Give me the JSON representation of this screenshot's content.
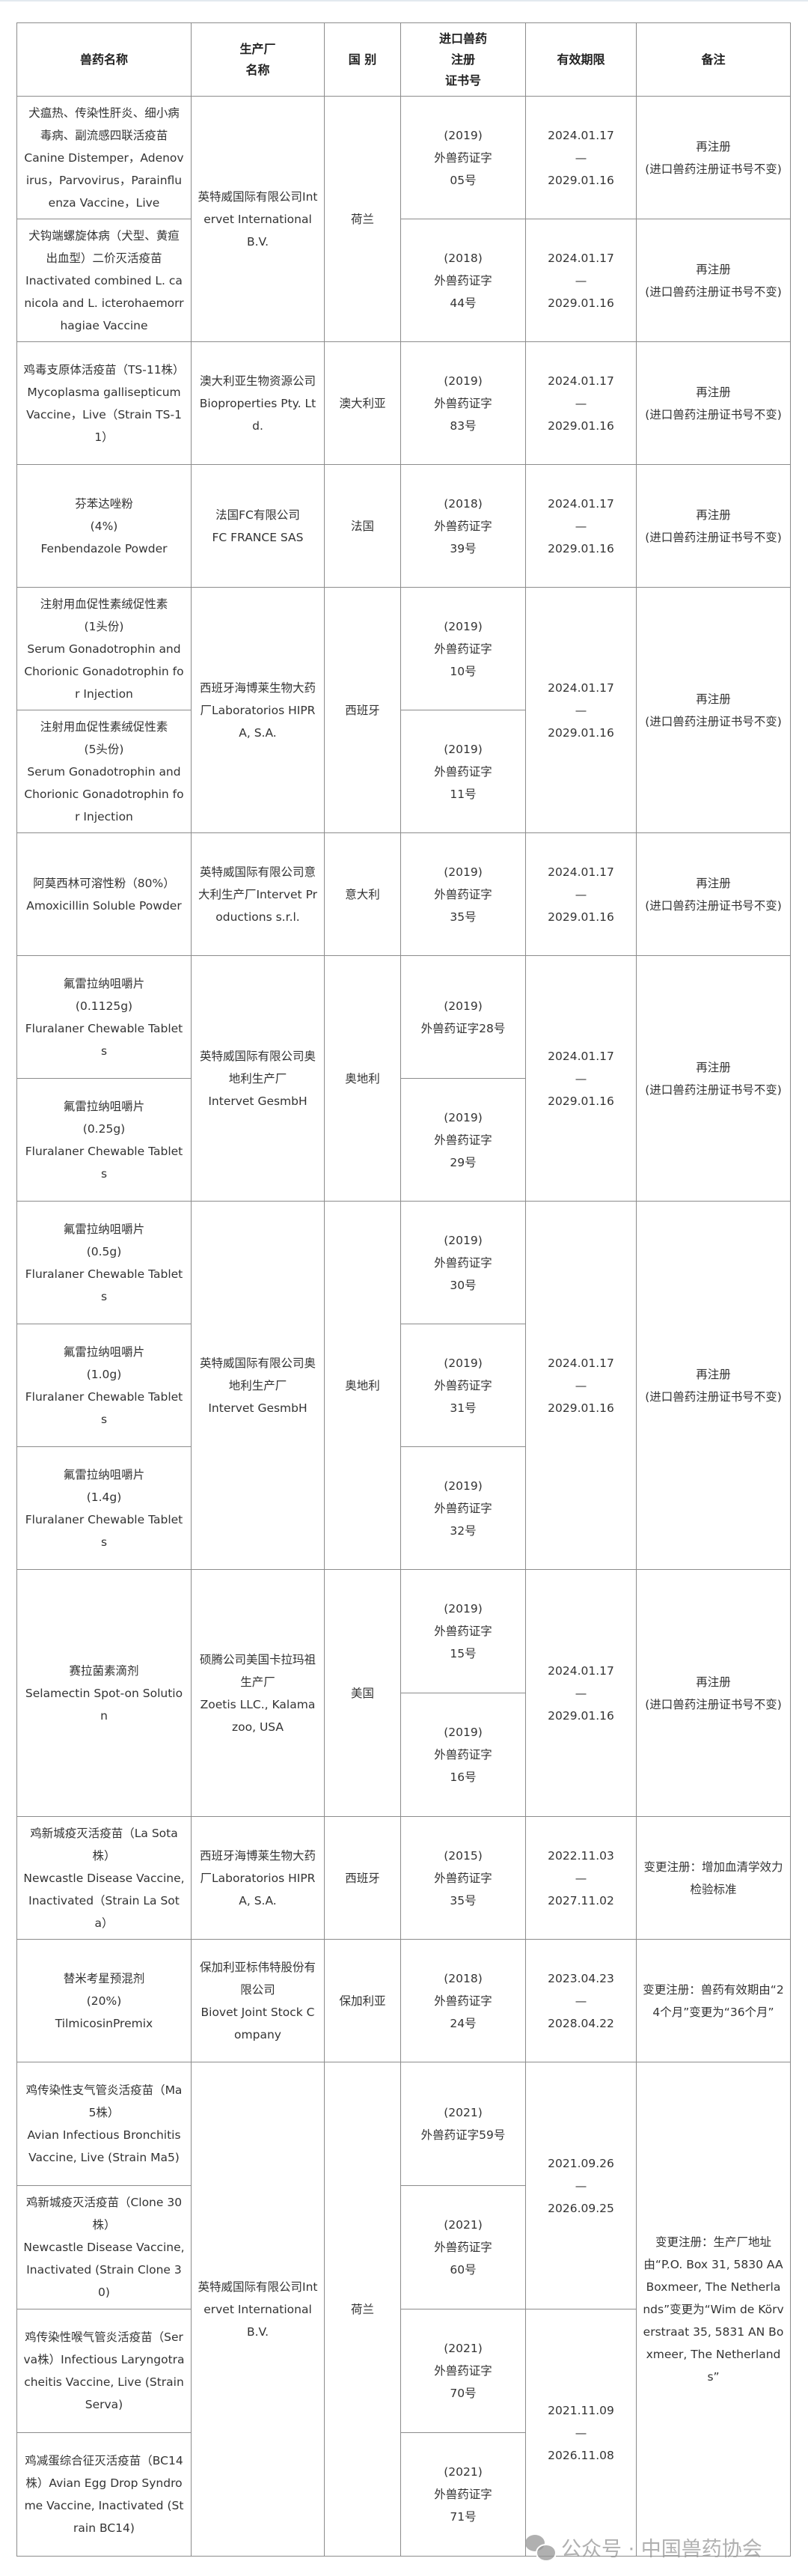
{
  "header": {
    "name": "兽药名称",
    "manufacturer": "生产厂\n名称",
    "country": "国 别",
    "cert": "进口兽药\n注册\n证书号",
    "validity": "有效期限",
    "remark": "备注"
  },
  "products": [
    "犬瘟热、传染性肝炎、细小病毒病、副流感四联活疫苗\nCanine Distemper，Adenovirus，Parvovirus，Parainfluenza Vaccine，Live",
    "犬钩端螺旋体病（犬型、黄疸出血型）二价灭活疫苗\nInactivated combined L. canicola and L. icterohaemorrhagiae Vaccine",
    "鸡毒支原体活疫苗（TS-11株）\nMycoplasma gallisepticum Vaccine，Live（Strain TS-11）",
    "芬苯达唑粉\n(4%)\nFenbendazole Powder",
    "注射用血促性素绒促性素\n(1头份)\nSerum Gonadotrophin and Chorionic Gonadotrophin for Injection",
    "注射用血促性素绒促性素\n(5头份)\nSerum Gonadotrophin and Chorionic Gonadotrophin for Injection",
    "阿莫西林可溶性粉（80%）\nAmoxicillin Soluble Powder",
    "氟雷拉纳咀嚼片\n(0.1125g)\nFluralaner Chewable Tablets",
    "氟雷拉纳咀嚼片\n(0.25g)\nFluralaner Chewable Tablets",
    "氟雷拉纳咀嚼片\n(0.5g)\nFluralaner Chewable Tablets",
    "氟雷拉纳咀嚼片\n(1.0g)\nFluralaner Chewable Tablets",
    "氟雷拉纳咀嚼片\n(1.4g)\nFluralaner Chewable Tablets",
    "赛拉菌素滴剂\nSelamectin Spot-on Solution",
    "鸡新城疫灭活疫苗（La Sota株）\nNewcastle Disease Vaccine, Inactivated（Strain La Sota）",
    "替米考星预混剂\n(20%)\nTilmicosinPremix",
    "鸡传染性支气管炎活疫苗（Ma5株）\nAvian Infectious Bronchitis Vaccine, Live (Strain Ma5)",
    "鸡新城疫灭活疫苗（Clone 30株）\nNewcastle Disease Vaccine, Inactivated (Strain Clone 30)",
    "鸡传染性喉气管炎活疫苗（Serva株）Infectious Laryngotracheitis Vaccine, Live (Strain Serva)",
    "鸡减蛋综合征灭活疫苗（BC14株）Avian Egg Drop Syndrome Vaccine, Inactivated (Strain BC14)"
  ],
  "manufacturers": [
    "英特威国际有限公司Intervet International B.V.",
    "澳大利亚生物资源公司Bioproperties Pty. Ltd.",
    "法国FC有限公司\nFC FRANCE SAS",
    "西班牙海博莱生物大药厂Laboratorios HIPRA, S.A.",
    "英特威国际有限公司意大利生产厂Intervet Productions s.r.l.",
    "英特威国际有限公司奥地利生产厂\nIntervet GesmbH",
    "英特威国际有限公司奥地利生产厂\nIntervet GesmbH",
    "硕腾公司美国卡拉玛祖生产厂\nZoetis LLC., Kalamazoo, USA",
    "西班牙海博莱生物大药厂Laboratorios HIPRA, S.A.",
    "保加利亚标伟特股份有限公司\nBiovet Joint Stock Company",
    "英特威国际有限公司Intervet International B.V."
  ],
  "countries": [
    "荷兰",
    "澳大利亚",
    "法国",
    "西班牙",
    "意大利",
    "奥地利",
    "奥地利",
    "美国",
    "西班牙",
    "保加利亚",
    "荷兰"
  ],
  "certificates": [
    "(2019)\n外兽药证字\n05号",
    "(2018)\n外兽药证字\n44号",
    "(2019)\n外兽药证字\n83号",
    "(2018)\n外兽药证字\n39号",
    "(2019)\n外兽药证字\n10号",
    "(2019)\n外兽药证字\n11号",
    "(2019)\n外兽药证字\n35号",
    "(2019)\n外兽药证字28号",
    "(2019)\n外兽药证字\n29号",
    "(2019)\n外兽药证字\n30号",
    "(2019)\n外兽药证字\n31号",
    "(2019)\n外兽药证字\n32号",
    "(2019)\n外兽药证字\n15号",
    "(2019)\n外兽药证字\n16号",
    "(2015)\n外兽药证字\n35号",
    "(2018)\n外兽药证字\n24号",
    "(2021)\n外兽药证字59号",
    "(2021)\n外兽药证字\n60号",
    "(2021)\n外兽药证字\n70号",
    "(2021)\n外兽药证字\n71号"
  ],
  "validity": [
    "2024.01.17\n—\n2029.01.16",
    "2024.01.17\n—\n2029.01.16",
    "2024.01.17\n—\n2029.01.16",
    "2024.01.17\n—\n2029.01.16",
    "2024.01.17\n—\n2029.01.16",
    "2024.01.17\n—\n2029.01.16",
    "2024.01.17\n—\n2029.01.16",
    "2024.01.17\n—\n2029.01.16",
    "2024.01.17\n—\n2029.01.16",
    "2022.11.03\n—\n2027.11.02",
    "2023.04.23\n—\n2028.04.22",
    "2021.09.26\n—\n2026.09.25",
    "2021.11.09\n—\n2026.11.08"
  ],
  "remarks": [
    "再注册\n(进口兽药注册证书号不变)",
    "再注册\n(进口兽药注册证书号不变)",
    "再注册\n(进口兽药注册证书号不变)",
    "再注册\n(进口兽药注册证书号不变)",
    "再注册\n(进口兽药注册证书号不变)",
    "再注册\n(进口兽药注册证书号不变)",
    "再注册\n(进口兽药注册证书号不变)",
    "再注册\n(进口兽药注册证书号不变)",
    "再注册\n(进口兽药注册证书号不变)",
    "变更注册：增加血清学效力检验标准",
    "变更注册：兽药有效期由“24个月”变更为“36个月”",
    "变更注册：生产厂地址由“P.O. Box 31, 5830 AA Boxmeer, The Netherlands”变更为“Wim de Körverstraat 35, 5831 AN Boxmeer, The Netherlands”"
  ],
  "watermark": {
    "text": "公众号 · 中国兽药协会",
    "icon": "wechat-icon"
  }
}
